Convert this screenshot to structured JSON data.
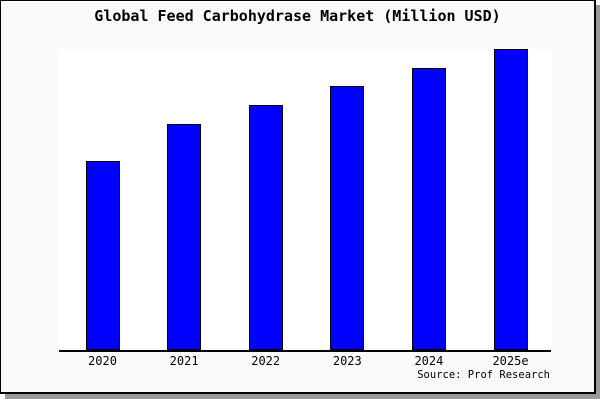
{
  "window": {
    "background": "#fafafa",
    "plot_background": "#ffffff",
    "frame_border_color": "#000000",
    "shadow_color": "#999999"
  },
  "source": "Source: Prof Research",
  "chart_data": {
    "type": "bar",
    "title": "Global Feed Carbohydrase Market (Million USD)",
    "categories": [
      "2020",
      "2021",
      "2022",
      "2023",
      "2024",
      "2025e"
    ],
    "values": [
      62.8,
      75.1,
      81.4,
      87.7,
      93.7,
      100
    ],
    "ylim": [
      0,
      100
    ],
    "xlabel": "",
    "ylabel": "",
    "grid": false,
    "legend": "none",
    "y_axis_visible": false,
    "bar_color": "#0000ff",
    "bar_border_color": "#000000",
    "axis_color": "#000000",
    "text_color": "#000000"
  }
}
